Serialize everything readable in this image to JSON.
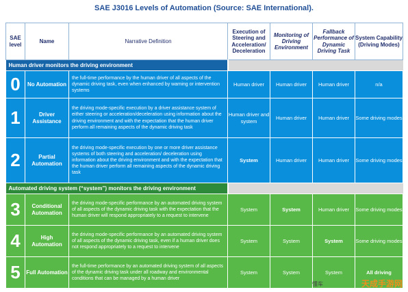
{
  "title": "SAE J3016 Levels of Automation (Source: SAE International).",
  "headers": {
    "sae_level": "SAE level",
    "name": "Name",
    "definition": "Narrative Definition",
    "execution": "Execution of Steering and Acceleration/ Deceleration",
    "monitoring": "Monitoring of Driving Environment",
    "fallback": "Fallback Performance of Dynamic Driving Task",
    "capability": "System Capability (Driving Modes)"
  },
  "sections": {
    "human": "Human driver monitors the driving environment",
    "automated": "Automated driving system (“system”) monitors the driving environment"
  },
  "levels": [
    {
      "num": "0",
      "name": "No Automation",
      "definition": "the full-time performance by the human driver of all aspects of the dynamic driving task, even when enhanced by warning or intervention systems",
      "execution": "Human driver",
      "monitoring": "Human driver",
      "fallback": "Human driver",
      "capability": "n/a"
    },
    {
      "num": "1",
      "name": "Driver Assistance",
      "definition": "the driving mode-specific execution by a driver assistance system of either steering or acceleration/deceleration using information about the driving environment and with the expectation that the human driver perform all remaining aspects of the dynamic driving task",
      "execution": "Human driver and system",
      "monitoring": "Human driver",
      "fallback": "Human driver",
      "capability": "Some driving modes"
    },
    {
      "num": "2",
      "name": "Partial Automation",
      "definition": "the driving mode-specific execution by one or more driver assistance systems of both steering and acceleration/ deceleration using information about the driving environment and with the expectation that the human driver perform all remaining aspects of the dynamic driving task",
      "execution": "System",
      "monitoring": "Human driver",
      "fallback": "Human driver",
      "capability": "Some driving modes"
    },
    {
      "num": "3",
      "name": "Conditional Automation",
      "definition": "the driving mode-specific performance by an automated driving system of all aspects of the dynamic driving task with the expectation that the human driver will respond appropriately to a request to intervene",
      "execution": "System",
      "monitoring": "System",
      "fallback": "Human driver",
      "capability": "Some driving modes"
    },
    {
      "num": "4",
      "name": "High Automation",
      "definition": "the driving mode-specific performance by an automated driving system of all aspects of the dynamic driving task, even if a human driver does not respond appropriately to a request to intervene",
      "execution": "System",
      "monitoring": "System",
      "fallback": "System",
      "capability": "Some driving modes"
    },
    {
      "num": "5",
      "name": "Full Automation",
      "definition": "the full-time performance by an automated driving system of all aspects of the dynamic driving task under all roadway and environmental conditions that can be managed by a human driver",
      "execution": "System",
      "monitoring": "System",
      "fallback": "System",
      "capability": "All driving"
    }
  ],
  "watermark": "天成手游网",
  "watermark_small": "懂车"
}
